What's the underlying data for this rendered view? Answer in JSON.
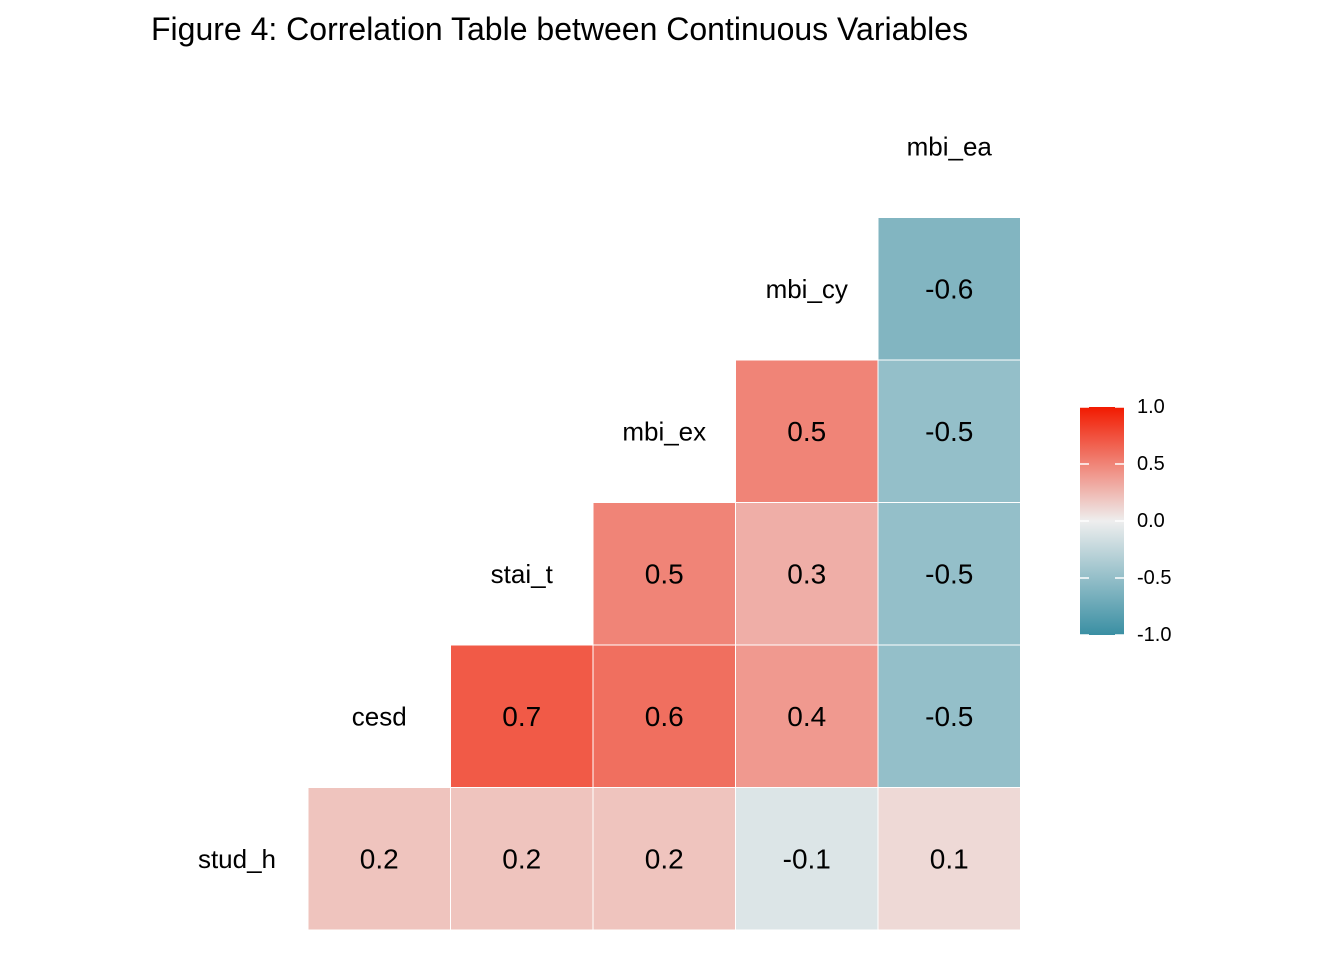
{
  "chart_data": {
    "type": "heatmap",
    "title": "Figure 4: Correlation Table between Continuous Variables",
    "variables": [
      "stud_h",
      "cesd",
      "stai_t",
      "mbi_ex",
      "mbi_cy",
      "mbi_ea"
    ],
    "cells": [
      {
        "row": "stud_h",
        "col": "cesd",
        "value": 0.2,
        "label": "0.2"
      },
      {
        "row": "stud_h",
        "col": "stai_t",
        "value": 0.2,
        "label": "0.2"
      },
      {
        "row": "stud_h",
        "col": "mbi_ex",
        "value": 0.2,
        "label": "0.2"
      },
      {
        "row": "stud_h",
        "col": "mbi_cy",
        "value": -0.1,
        "label": "-0.1"
      },
      {
        "row": "stud_h",
        "col": "mbi_ea",
        "value": 0.1,
        "label": "0.1"
      },
      {
        "row": "cesd",
        "col": "stai_t",
        "value": 0.7,
        "label": "0.7"
      },
      {
        "row": "cesd",
        "col": "mbi_ex",
        "value": 0.6,
        "label": "0.6"
      },
      {
        "row": "cesd",
        "col": "mbi_cy",
        "value": 0.4,
        "label": "0.4"
      },
      {
        "row": "cesd",
        "col": "mbi_ea",
        "value": -0.5,
        "label": "-0.5"
      },
      {
        "row": "stai_t",
        "col": "mbi_ex",
        "value": 0.5,
        "label": "0.5"
      },
      {
        "row": "stai_t",
        "col": "mbi_cy",
        "value": 0.3,
        "label": "0.3"
      },
      {
        "row": "stai_t",
        "col": "mbi_ea",
        "value": -0.5,
        "label": "-0.5"
      },
      {
        "row": "mbi_ex",
        "col": "mbi_cy",
        "value": 0.5,
        "label": "0.5"
      },
      {
        "row": "mbi_ex",
        "col": "mbi_ea",
        "value": -0.5,
        "label": "-0.5"
      },
      {
        "row": "mbi_cy",
        "col": "mbi_ea",
        "value": -0.6,
        "label": "-0.6"
      }
    ],
    "color_scale": {
      "low": "#3A8FA3",
      "mid": "#EEEEEE",
      "high": "#F21A00",
      "range": [
        -1,
        1
      ],
      "ticks": [
        1.0,
        0.5,
        0.0,
        -0.5,
        -1.0
      ],
      "tick_labels": [
        "1.0",
        "0.5",
        "0.0",
        "-0.5",
        "-1.0"
      ]
    },
    "legend_placement": "right",
    "grid": false
  }
}
